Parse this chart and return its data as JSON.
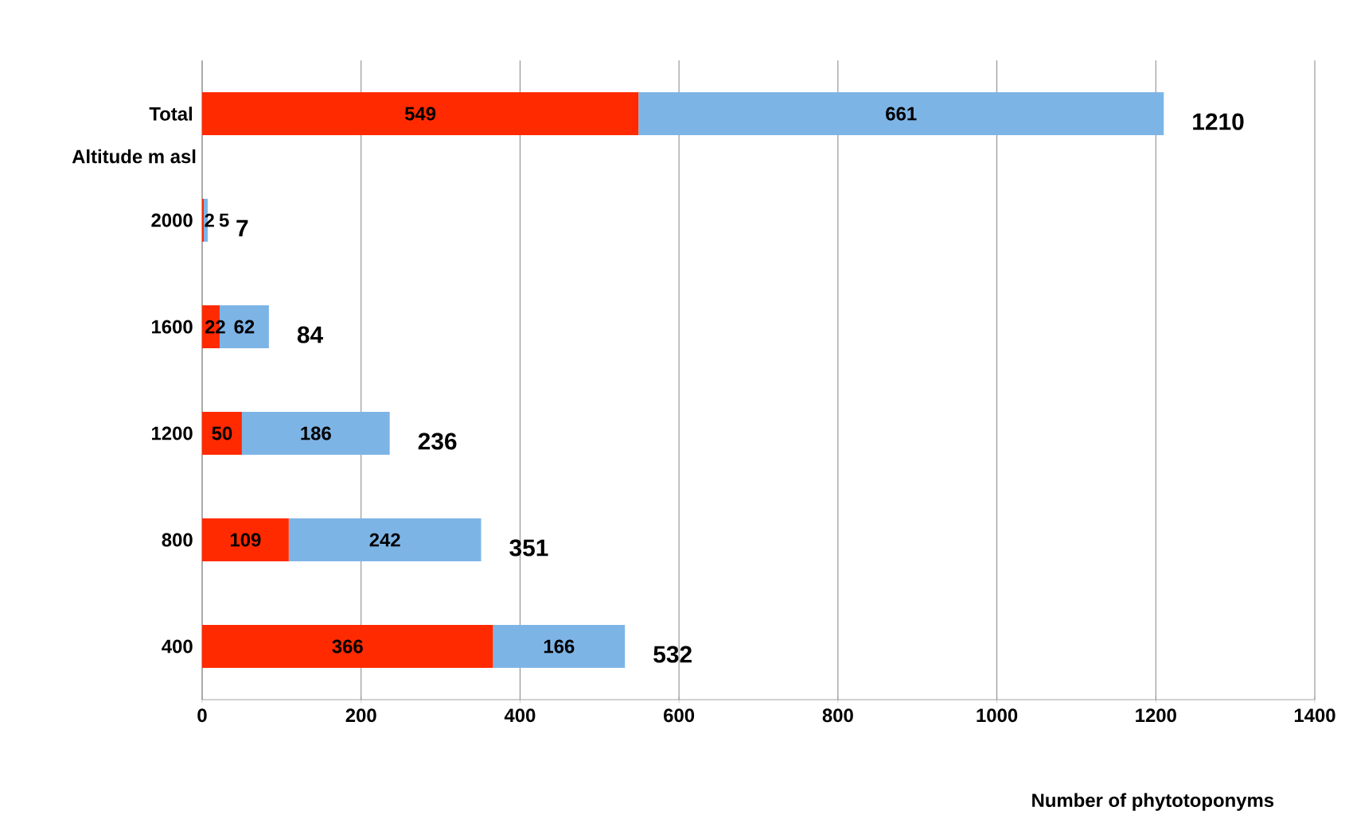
{
  "chart_data": {
    "type": "bar",
    "orientation": "horizontal",
    "stacked": true,
    "categories": [
      "Total",
      "2000",
      "1600",
      "1200",
      "800",
      "400"
    ],
    "series": [
      {
        "color": "#ff2a00",
        "values": [
          549,
          2,
          22,
          50,
          109,
          366
        ]
      },
      {
        "color": "#7db4e6",
        "values": [
          661,
          5,
          62,
          186,
          242,
          166
        ]
      }
    ],
    "totals": [
      "1210",
      "7",
      "84",
      "236",
      "351",
      "532"
    ],
    "data_labels": true,
    "xlim": [
      0,
      1400
    ],
    "xticks": [
      0,
      200,
      400,
      600,
      800,
      1000,
      1200,
      1400
    ],
    "xlabel": "Number of phytotoponyms",
    "ylabel": "Altitude m asl",
    "grid": "x"
  }
}
